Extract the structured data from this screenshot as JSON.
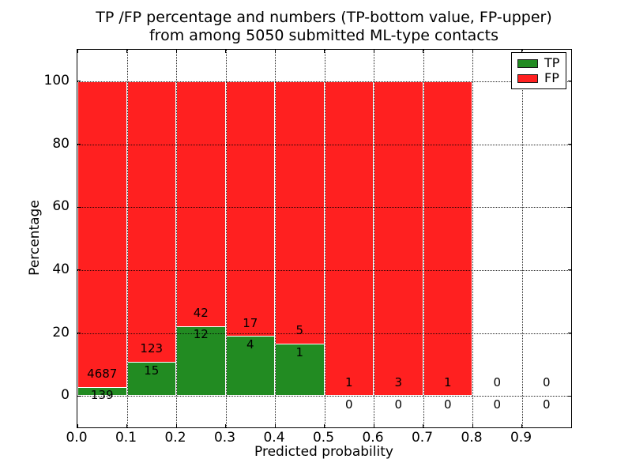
{
  "chart_data": {
    "type": "bar",
    "stacked": true,
    "title_line1": "TP /FP percentage and numbers (TP-bottom value, FP-upper)",
    "title_line2": "from among 5050 submitted ML-type contacts",
    "xlabel": "Predicted probability",
    "ylabel": "Percentage",
    "xlim": [
      0.0,
      1.0
    ],
    "ylim": [
      -10,
      110
    ],
    "grid": true,
    "legend_position": "upper right",
    "xticks": [
      {
        "v": 0.0,
        "label": "0.0"
      },
      {
        "v": 0.1,
        "label": "0.1"
      },
      {
        "v": 0.2,
        "label": "0.2"
      },
      {
        "v": 0.3,
        "label": "0.3"
      },
      {
        "v": 0.4,
        "label": "0.4"
      },
      {
        "v": 0.5,
        "label": "0.5"
      },
      {
        "v": 0.6,
        "label": "0.6"
      },
      {
        "v": 0.7,
        "label": "0.7"
      },
      {
        "v": 0.8,
        "label": "0.8"
      },
      {
        "v": 0.9,
        "label": "0.9"
      }
    ],
    "yticks": [
      {
        "v": 0,
        "label": "0"
      },
      {
        "v": 20,
        "label": "20"
      },
      {
        "v": 40,
        "label": "40"
      },
      {
        "v": 60,
        "label": "60"
      },
      {
        "v": 80,
        "label": "80"
      },
      {
        "v": 100,
        "label": "100"
      }
    ],
    "bin_width": 0.1,
    "bins": [
      {
        "x0": 0.0,
        "tp": 139,
        "fp": 4687,
        "tp_pct": 2.88,
        "fp_pct": 97.12
      },
      {
        "x0": 0.1,
        "tp": 15,
        "fp": 123,
        "tp_pct": 10.87,
        "fp_pct": 89.13
      },
      {
        "x0": 0.2,
        "tp": 12,
        "fp": 42,
        "tp_pct": 22.22,
        "fp_pct": 77.78
      },
      {
        "x0": 0.3,
        "tp": 4,
        "fp": 17,
        "tp_pct": 19.05,
        "fp_pct": 80.95
      },
      {
        "x0": 0.4,
        "tp": 1,
        "fp": 5,
        "tp_pct": 16.67,
        "fp_pct": 83.33
      },
      {
        "x0": 0.5,
        "tp": 0,
        "fp": 1,
        "tp_pct": 0,
        "fp_pct": 100
      },
      {
        "x0": 0.6,
        "tp": 0,
        "fp": 3,
        "tp_pct": 0,
        "fp_pct": 100
      },
      {
        "x0": 0.7,
        "tp": 0,
        "fp": 1,
        "tp_pct": 0,
        "fp_pct": 100
      },
      {
        "x0": 0.8,
        "tp": 0,
        "fp": 0,
        "tp_pct": 0,
        "fp_pct": 0
      },
      {
        "x0": 0.9,
        "tp": 0,
        "fp": 0,
        "tp_pct": 0,
        "fp_pct": 0
      }
    ],
    "colors": {
      "tp": "#228b22",
      "fp": "#ff2020"
    },
    "legend": [
      {
        "label": "TP",
        "color": "#228b22"
      },
      {
        "label": "FP",
        "color": "#ff2020"
      }
    ]
  }
}
